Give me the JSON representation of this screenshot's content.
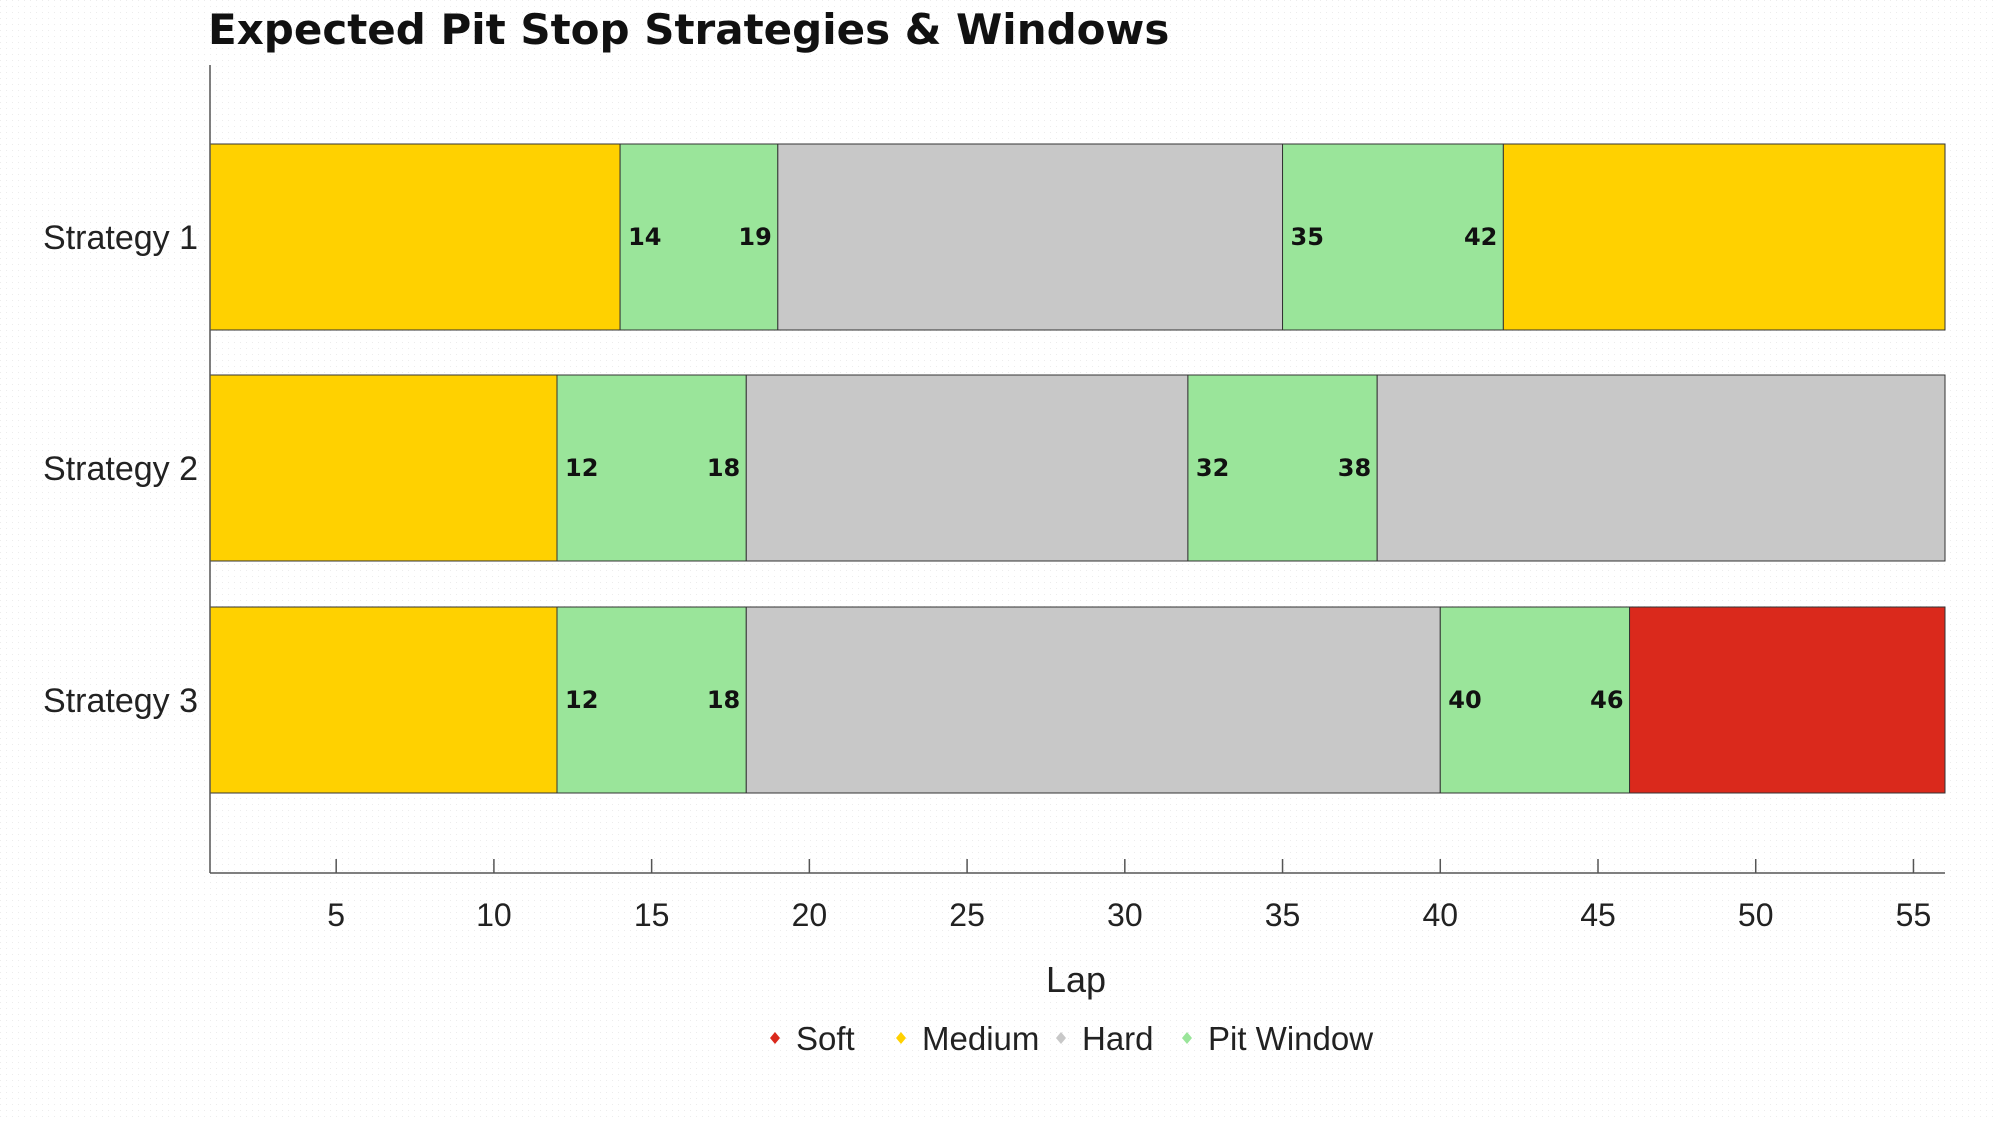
{
  "chart_data": {
    "type": "bar",
    "orientation": "horizontal-stacked",
    "title": "Expected Pit Stop Strategies & Windows",
    "xlabel": "Lap",
    "xlim": [
      1,
      56
    ],
    "xticks": [
      5,
      10,
      15,
      20,
      25,
      30,
      35,
      40,
      45,
      50,
      55
    ],
    "categories": [
      "Strategy 1",
      "Strategy 2",
      "Strategy 3"
    ],
    "legend": [
      {
        "name": "Soft",
        "color": "#DA291C"
      },
      {
        "name": "Medium",
        "color": "#FFD100"
      },
      {
        "name": "Hard",
        "color": "#C8C8C8"
      },
      {
        "name": "Pit Window",
        "color": "#9AE59A"
      }
    ],
    "legend_position": "bottom-center",
    "strategies": [
      {
        "name": "Strategy 1",
        "segments": [
          {
            "compound": "Medium",
            "start": 1,
            "end": 14
          },
          {
            "compound": "Pit Window",
            "start": 14,
            "end": 19,
            "labels": [
              "14",
              "19"
            ]
          },
          {
            "compound": "Hard",
            "start": 19,
            "end": 35
          },
          {
            "compound": "Pit Window",
            "start": 35,
            "end": 42,
            "labels": [
              "35",
              "42"
            ]
          },
          {
            "compound": "Medium",
            "start": 42,
            "end": 56
          }
        ]
      },
      {
        "name": "Strategy 2",
        "segments": [
          {
            "compound": "Medium",
            "start": 1,
            "end": 12
          },
          {
            "compound": "Pit Window",
            "start": 12,
            "end": 18,
            "labels": [
              "12",
              "18"
            ]
          },
          {
            "compound": "Hard",
            "start": 18,
            "end": 32
          },
          {
            "compound": "Pit Window",
            "start": 32,
            "end": 38,
            "labels": [
              "32",
              "38"
            ]
          },
          {
            "compound": "Hard",
            "start": 38,
            "end": 56
          }
        ]
      },
      {
        "name": "Strategy 3",
        "segments": [
          {
            "compound": "Medium",
            "start": 1,
            "end": 12
          },
          {
            "compound": "Pit Window",
            "start": 12,
            "end": 18,
            "labels": [
              "12",
              "18"
            ]
          },
          {
            "compound": "Hard",
            "start": 18,
            "end": 40
          },
          {
            "compound": "Pit Window",
            "start": 40,
            "end": 46,
            "labels": [
              "40",
              "46"
            ]
          },
          {
            "compound": "Soft",
            "start": 46,
            "end": 56
          }
        ]
      }
    ],
    "grid": false,
    "background_pattern": "faint-dotted-grid"
  }
}
